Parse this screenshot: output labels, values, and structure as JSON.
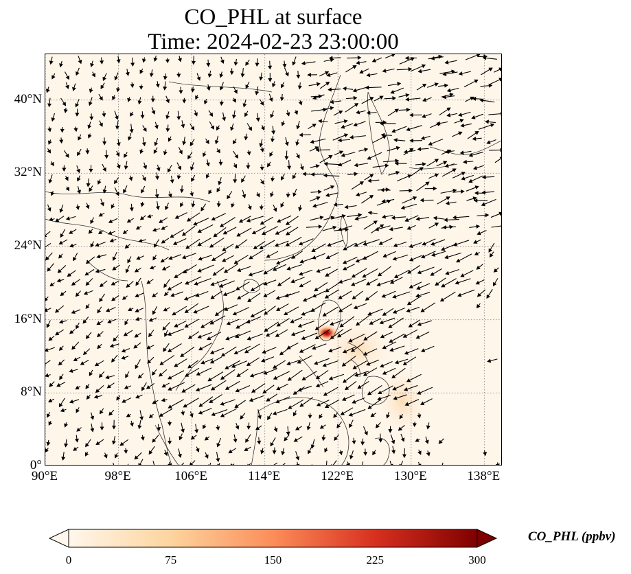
{
  "title_line1": "CO_PHL at surface",
  "title_line2": "Time: 2024-02-23 23:00:00",
  "map": {
    "lon_range": [
      90,
      140
    ],
    "lat_range": [
      0,
      45
    ],
    "gridlines": true,
    "lat_ticks": [
      {
        "value": 0,
        "label": "0°"
      },
      {
        "value": 8,
        "label": "8°N"
      },
      {
        "value": 16,
        "label": "16°N"
      },
      {
        "value": 24,
        "label": "24°N"
      },
      {
        "value": 32,
        "label": "32°N"
      },
      {
        "value": 40,
        "label": "40°N"
      }
    ],
    "lon_ticks": [
      {
        "value": 90,
        "label": "90°E"
      },
      {
        "value": 98,
        "label": "98°E"
      },
      {
        "value": 106,
        "label": "106°E"
      },
      {
        "value": 114,
        "label": "114°E"
      },
      {
        "value": 122,
        "label": "122°E"
      },
      {
        "value": 130,
        "label": "130°E"
      },
      {
        "value": 138,
        "label": "138°E"
      }
    ],
    "background_color": "#fff6ea",
    "wind_vectors": "black arrows",
    "plume_center": {
      "lon": 120.8,
      "lat": 14.6
    }
  },
  "colorbar": {
    "label": "CO_PHL (ppbv)",
    "colormap": "OrRd",
    "colors": [
      "#fff7ec",
      "#fdd49e",
      "#fc8d59",
      "#d7301f",
      "#7f0000"
    ],
    "ticks": [
      "0",
      "75",
      "150",
      "225",
      "300"
    ],
    "extend": "both"
  }
}
